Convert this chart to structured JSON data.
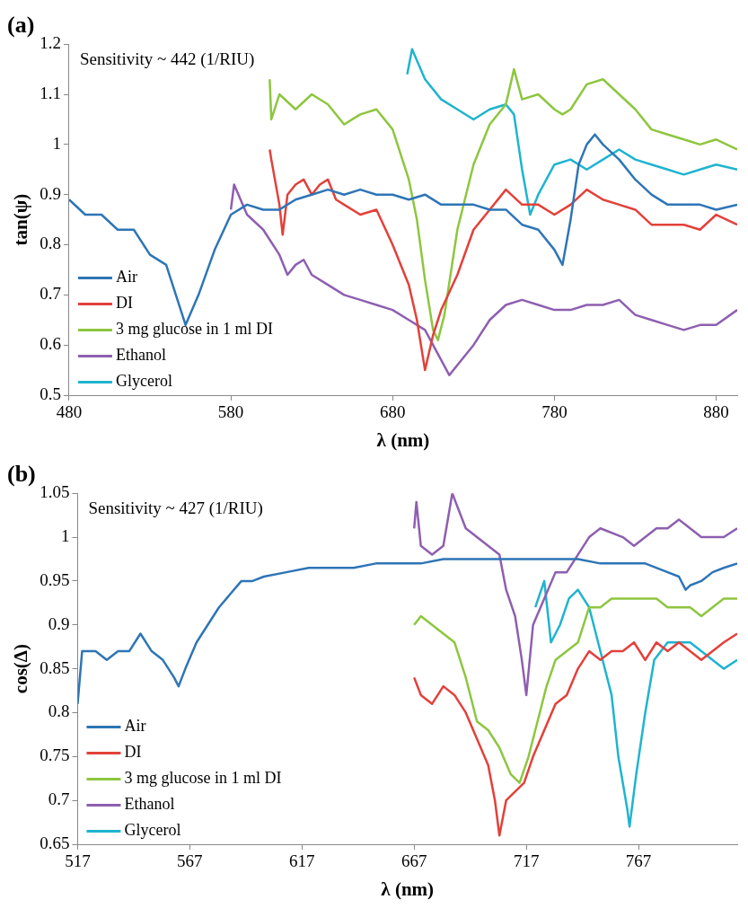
{
  "chart_data": [
    {
      "type": "line",
      "title": "(a)",
      "xlabel": "λ (nm)",
      "ylabel": "tan(ψ)",
      "annotations": [
        "Sensitivity ~ 442 (1/RIU)"
      ],
      "xlim": [
        480,
        893
      ],
      "xticks": [
        480,
        580,
        680,
        780,
        880
      ],
      "ylim": [
        0.5,
        1.2
      ],
      "yticks": [
        0.5,
        0.6,
        0.7,
        0.8,
        0.9,
        1,
        1.1,
        1.2
      ],
      "grid": false,
      "legend": "bottom left",
      "marker": "none",
      "line_style": "solid",
      "series": [
        {
          "name": "Air",
          "color": "#2e75b6",
          "x": [
            480,
            490,
            500,
            510,
            520,
            530,
            540,
            550,
            552,
            560,
            570,
            580,
            590,
            600,
            610,
            620,
            630,
            640,
            650,
            660,
            670,
            680,
            690,
            700,
            710,
            720,
            730,
            740,
            750,
            760,
            770,
            780,
            785,
            790,
            795,
            800,
            805,
            810,
            820,
            830,
            840,
            850,
            860,
            870,
            880,
            893
          ],
          "values": [
            0.89,
            0.86,
            0.86,
            0.83,
            0.83,
            0.78,
            0.76,
            0.66,
            0.64,
            0.7,
            0.79,
            0.86,
            0.88,
            0.87,
            0.87,
            0.89,
            0.9,
            0.91,
            0.9,
            0.91,
            0.9,
            0.9,
            0.89,
            0.9,
            0.88,
            0.88,
            0.88,
            0.87,
            0.87,
            0.84,
            0.83,
            0.79,
            0.76,
            0.85,
            0.96,
            1.0,
            1.02,
            1.0,
            0.97,
            0.93,
            0.9,
            0.88,
            0.88,
            0.88,
            0.87,
            0.88
          ]
        },
        {
          "name": "DI",
          "color": "#e3403a",
          "x": [
            604,
            605,
            610,
            612,
            615,
            620,
            625,
            630,
            635,
            640,
            645,
            650,
            660,
            670,
            680,
            690,
            695,
            700,
            705,
            710,
            720,
            730,
            740,
            750,
            760,
            770,
            780,
            790,
            800,
            810,
            820,
            830,
            840,
            850,
            860,
            870,
            880,
            893
          ],
          "values": [
            0.99,
            0.97,
            0.88,
            0.82,
            0.9,
            0.92,
            0.93,
            0.9,
            0.92,
            0.93,
            0.89,
            0.88,
            0.86,
            0.87,
            0.8,
            0.72,
            0.65,
            0.55,
            0.62,
            0.67,
            0.74,
            0.83,
            0.87,
            0.91,
            0.88,
            0.88,
            0.86,
            0.88,
            0.91,
            0.89,
            0.88,
            0.87,
            0.84,
            0.84,
            0.84,
            0.83,
            0.86,
            0.84
          ]
        },
        {
          "name": "3 mg glucose in 1 ml DI",
          "color": "#8dc63f",
          "x": [
            604,
            605,
            610,
            620,
            630,
            640,
            650,
            660,
            670,
            680,
            690,
            695,
            700,
            705,
            708,
            712,
            720,
            730,
            740,
            750,
            755,
            760,
            770,
            780,
            785,
            790,
            800,
            810,
            820,
            830,
            840,
            850,
            860,
            870,
            880,
            893
          ],
          "values": [
            1.13,
            1.05,
            1.1,
            1.07,
            1.1,
            1.08,
            1.04,
            1.06,
            1.07,
            1.03,
            0.93,
            0.85,
            0.73,
            0.63,
            0.61,
            0.66,
            0.83,
            0.96,
            1.04,
            1.08,
            1.15,
            1.09,
            1.1,
            1.07,
            1.06,
            1.07,
            1.12,
            1.13,
            1.1,
            1.07,
            1.03,
            1.02,
            1.01,
            1.0,
            1.01,
            0.99
          ]
        },
        {
          "name": "Ethanol",
          "color": "#8e5fb0",
          "x": [
            580,
            582,
            590,
            600,
            610,
            615,
            620,
            625,
            630,
            640,
            650,
            660,
            670,
            680,
            690,
            700,
            710,
            715,
            720,
            730,
            740,
            750,
            760,
            770,
            780,
            790,
            800,
            810,
            820,
            830,
            840,
            850,
            860,
            870,
            880,
            893
          ],
          "values": [
            0.87,
            0.92,
            0.86,
            0.83,
            0.78,
            0.74,
            0.76,
            0.77,
            0.74,
            0.72,
            0.7,
            0.69,
            0.68,
            0.67,
            0.65,
            0.63,
            0.57,
            0.54,
            0.56,
            0.6,
            0.65,
            0.68,
            0.69,
            0.68,
            0.67,
            0.67,
            0.68,
            0.68,
            0.69,
            0.66,
            0.65,
            0.64,
            0.63,
            0.64,
            0.64,
            0.67
          ]
        },
        {
          "name": "Glycerol",
          "color": "#1fb4cf",
          "x": [
            689,
            692,
            700,
            710,
            720,
            730,
            740,
            750,
            755,
            760,
            765,
            770,
            780,
            790,
            800,
            810,
            820,
            830,
            840,
            850,
            860,
            870,
            880,
            893
          ],
          "values": [
            1.14,
            1.19,
            1.13,
            1.09,
            1.07,
            1.05,
            1.07,
            1.08,
            1.06,
            0.95,
            0.86,
            0.9,
            0.96,
            0.97,
            0.95,
            0.97,
            0.99,
            0.97,
            0.96,
            0.95,
            0.94,
            0.95,
            0.96,
            0.95
          ]
        }
      ]
    },
    {
      "type": "line",
      "title": "(b)",
      "xlabel": "λ (nm)",
      "ylabel": "cos(Δ)",
      "annotations": [
        "Sensitivity ~ 427 (1/RIU)"
      ],
      "xlim": [
        517,
        811
      ],
      "xticks": [
        517,
        567,
        617,
        667,
        717,
        767
      ],
      "ylim": [
        0.65,
        1.05
      ],
      "yticks": [
        0.65,
        0.7,
        0.75,
        0.8,
        0.85,
        0.9,
        0.95,
        1,
        1.05
      ],
      "grid": false,
      "legend": "bottom left",
      "marker": "none",
      "line_style": "solid",
      "series": [
        {
          "name": "Air",
          "color": "#2e75b6",
          "x": [
            517,
            519,
            525,
            530,
            535,
            540,
            545,
            550,
            555,
            560,
            562,
            565,
            570,
            575,
            580,
            585,
            590,
            595,
            600,
            610,
            620,
            630,
            640,
            650,
            660,
            670,
            680,
            690,
            700,
            710,
            720,
            730,
            740,
            750,
            760,
            770,
            780,
            785,
            788,
            790,
            795,
            800,
            805,
            811
          ],
          "values": [
            0.81,
            0.87,
            0.87,
            0.86,
            0.87,
            0.87,
            0.89,
            0.87,
            0.86,
            0.84,
            0.83,
            0.85,
            0.88,
            0.9,
            0.92,
            0.935,
            0.95,
            0.95,
            0.955,
            0.96,
            0.965,
            0.965,
            0.965,
            0.97,
            0.97,
            0.97,
            0.975,
            0.975,
            0.975,
            0.975,
            0.975,
            0.975,
            0.975,
            0.97,
            0.97,
            0.97,
            0.96,
            0.955,
            0.94,
            0.945,
            0.95,
            0.96,
            0.965,
            0.97
          ]
        },
        {
          "name": "DI",
          "color": "#e3403a",
          "x": [
            667,
            670,
            675,
            680,
            685,
            690,
            695,
            700,
            703,
            705,
            708,
            712,
            716,
            720,
            725,
            730,
            735,
            740,
            745,
            750,
            755,
            760,
            765,
            770,
            775,
            780,
            785,
            790,
            795,
            800,
            805,
            811
          ],
          "values": [
            0.84,
            0.82,
            0.81,
            0.83,
            0.82,
            0.8,
            0.77,
            0.74,
            0.7,
            0.66,
            0.7,
            0.71,
            0.72,
            0.75,
            0.78,
            0.81,
            0.82,
            0.85,
            0.87,
            0.86,
            0.87,
            0.87,
            0.88,
            0.86,
            0.88,
            0.87,
            0.88,
            0.87,
            0.86,
            0.87,
            0.88,
            0.89
          ]
        },
        {
          "name": "3 mg glucose in 1 ml DI",
          "color": "#8dc63f",
          "x": [
            667,
            670,
            675,
            680,
            685,
            690,
            695,
            700,
            705,
            710,
            714,
            718,
            722,
            726,
            730,
            735,
            740,
            745,
            750,
            755,
            760,
            765,
            770,
            775,
            780,
            785,
            790,
            795,
            800,
            805,
            811
          ],
          "values": [
            0.9,
            0.91,
            0.9,
            0.89,
            0.88,
            0.84,
            0.79,
            0.78,
            0.76,
            0.73,
            0.72,
            0.75,
            0.79,
            0.83,
            0.86,
            0.87,
            0.88,
            0.92,
            0.92,
            0.93,
            0.93,
            0.93,
            0.93,
            0.93,
            0.92,
            0.92,
            0.92,
            0.91,
            0.92,
            0.93,
            0.93
          ]
        },
        {
          "name": "Ethanol",
          "color": "#8e5fb0",
          "x": [
            667,
            668,
            670,
            675,
            680,
            684,
            690,
            695,
            700,
            705,
            708,
            712,
            715,
            717,
            720,
            725,
            730,
            735,
            740,
            745,
            750,
            760,
            765,
            770,
            775,
            780,
            785,
            790,
            795,
            800,
            805,
            811
          ],
          "values": [
            1.01,
            1.04,
            0.99,
            0.98,
            0.99,
            1.05,
            1.01,
            1.0,
            0.99,
            0.98,
            0.94,
            0.91,
            0.86,
            0.82,
            0.9,
            0.93,
            0.96,
            0.96,
            0.98,
            1.0,
            1.01,
            1.0,
            0.99,
            1.0,
            1.01,
            1.01,
            1.02,
            1.01,
            1.0,
            1.0,
            1.0,
            1.01
          ]
        },
        {
          "name": "Glycerol",
          "color": "#1fb4cf",
          "x": [
            721,
            725,
            728,
            732,
            736,
            740,
            745,
            750,
            755,
            758,
            762,
            763,
            766,
            770,
            774,
            780,
            785,
            790,
            795,
            800,
            805,
            811
          ],
          "values": [
            0.92,
            0.95,
            0.88,
            0.9,
            0.93,
            0.94,
            0.92,
            0.87,
            0.82,
            0.75,
            0.69,
            0.67,
            0.73,
            0.8,
            0.86,
            0.88,
            0.88,
            0.88,
            0.87,
            0.86,
            0.85,
            0.86
          ]
        }
      ]
    }
  ]
}
